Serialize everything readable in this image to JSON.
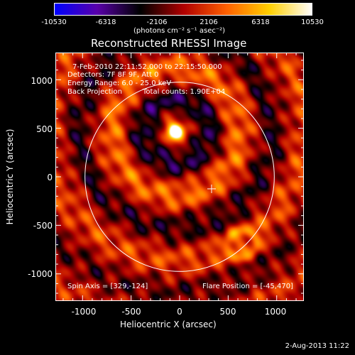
{
  "colorbar": {
    "tick_labels": [
      "-10530",
      "-6318",
      "-2106",
      "2106",
      "6318",
      "10530"
    ],
    "units": "(photons cm⁻² s⁻¹ asec⁻²)",
    "colors": [
      "#0000ff",
      "#5a00aa",
      "#000000",
      "#b00000",
      "#ff6000",
      "#ffd000",
      "#ffffff"
    ]
  },
  "title": "Reconstructed RHESSI Image",
  "annotations": {
    "time_range": "7-Feb-2010 22:11:52.000 to 22:15:50.000",
    "detectors": "Detectors: 7F 8F 9F, Att 0",
    "energy": "Energy Range: 6.0 - 25.0 keV",
    "method": "Back Projection",
    "counts": "Total counts: 1.90E+04",
    "spin_axis": "Spin Axis = [329,-124]",
    "flare_position": "Flare Position = [-45,470]"
  },
  "axes": {
    "xlabel": "Heliocentric X (arcsec)",
    "ylabel": "Heliocentric Y (arcsec)",
    "x_ticks": [
      "-1000",
      "-500",
      "0",
      "500",
      "1000"
    ],
    "y_ticks": [
      "1000",
      "500",
      "0",
      "-500",
      "-1000"
    ],
    "xlim": [
      -1280,
      1280
    ],
    "ylim": [
      -1280,
      1280
    ]
  },
  "image": {
    "solar_radius_arcsec": 975,
    "source_center_arcsec": [
      -45,
      470
    ],
    "spin_axis_arcsec": [
      329,
      -124
    ]
  },
  "footer_date": "2-Aug-2013 11:22"
}
